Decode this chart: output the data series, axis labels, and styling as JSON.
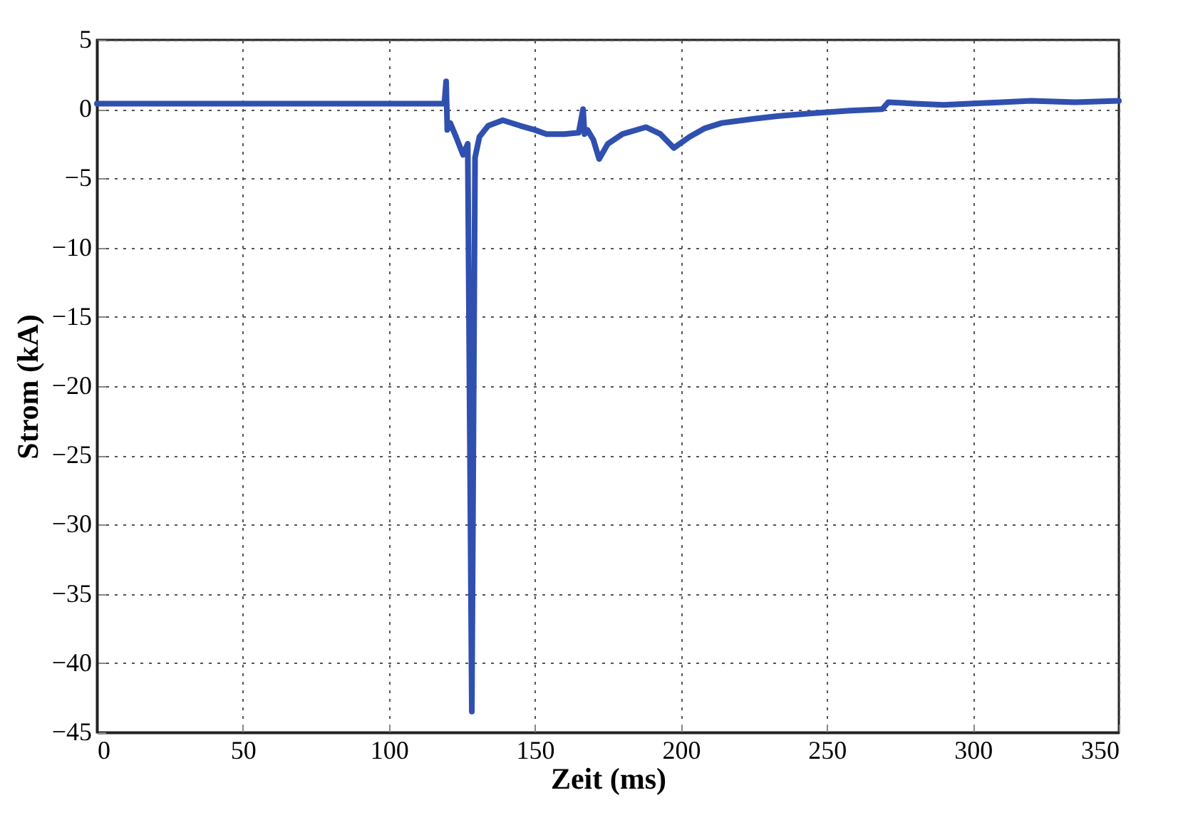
{
  "chart_data": {
    "type": "line",
    "xlabel": "Zeit (ms)",
    "ylabel": "Strom (kA)",
    "xlim": [
      0,
      350
    ],
    "xticks": [
      0,
      50,
      100,
      150,
      200,
      250,
      300,
      350
    ],
    "ylim": [
      -45,
      5
    ],
    "yticks": [
      5,
      0,
      -5,
      -10,
      -15,
      -20,
      -25,
      -30,
      -35,
      -40,
      -45
    ],
    "grid": true,
    "line_style": "solid",
    "marker": "none",
    "series": [
      {
        "color": "#3050b0",
        "x": [
          0,
          30,
          60,
          90,
          119,
          119.6,
          120,
          121,
          123,
          125.4,
          127,
          128.4,
          129.5,
          131,
          134,
          139,
          145,
          150,
          154,
          160,
          165,
          166.5,
          167,
          168,
          170,
          172,
          175,
          180,
          188,
          193,
          197.6,
          203,
          208,
          214,
          225,
          233,
          245,
          258,
          269,
          271,
          280,
          290,
          299,
          310,
          320,
          335,
          350
        ],
        "values": [
          0.4,
          0.4,
          0.4,
          0.4,
          0.4,
          2.0,
          -1.5,
          -1.0,
          -2.0,
          -3.3,
          -2.5,
          -43.5,
          -3.5,
          -2.0,
          -1.2,
          -0.8,
          -1.2,
          -1.5,
          -1.8,
          -1.8,
          -1.7,
          0.0,
          -1.8,
          -1.5,
          -2.2,
          -3.6,
          -2.5,
          -1.8,
          -1.3,
          -1.8,
          -2.8,
          -2.0,
          -1.4,
          -1.0,
          -0.7,
          -0.5,
          -0.3,
          -0.1,
          0.0,
          0.5,
          0.4,
          0.3,
          0.4,
          0.5,
          0.6,
          0.5,
          0.6
        ]
      }
    ]
  }
}
